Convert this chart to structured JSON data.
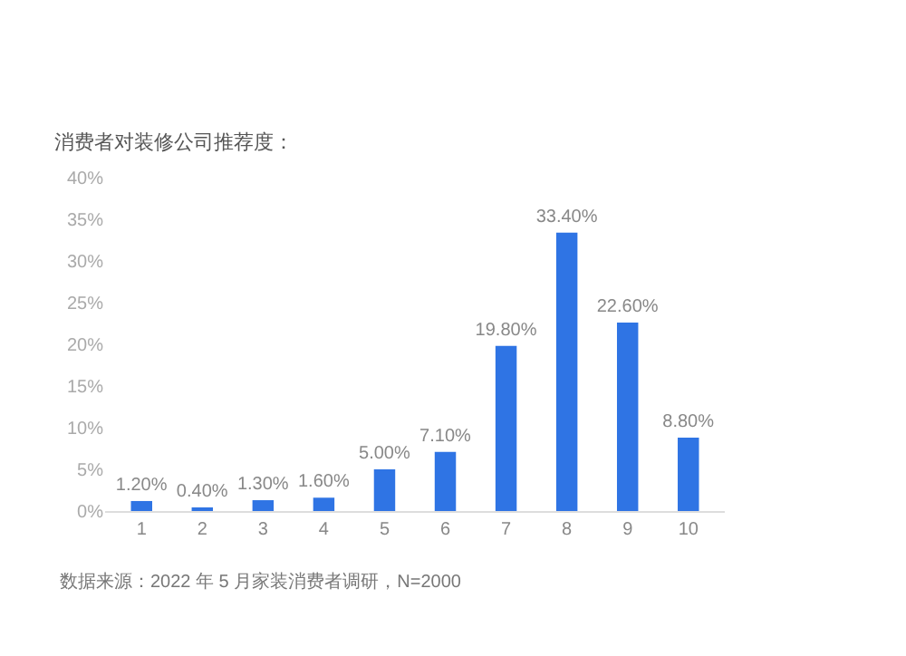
{
  "chart_data": {
    "type": "bar",
    "title": "消费者对装修公司推荐度：",
    "categories": [
      "1",
      "2",
      "3",
      "4",
      "5",
      "6",
      "7",
      "8",
      "9",
      "10"
    ],
    "values": [
      1.2,
      0.4,
      1.3,
      1.6,
      5.0,
      7.1,
      19.8,
      33.4,
      22.6,
      8.8
    ],
    "value_labels": [
      "1.20%",
      "0.40%",
      "1.30%",
      "1.60%",
      "5.00%",
      "7.10%",
      "19.80%",
      "33.40%",
      "22.60%",
      "8.80%"
    ],
    "color": "#2f74e4",
    "ylim": [
      0,
      40
    ],
    "yticks": [
      {
        "value": 0,
        "label": "0%"
      },
      {
        "value": 5,
        "label": "5%"
      },
      {
        "value": 10,
        "label": "10%"
      },
      {
        "value": 15,
        "label": "15%"
      },
      {
        "value": 20,
        "label": "20%"
      },
      {
        "value": 25,
        "label": "25%"
      },
      {
        "value": 30,
        "label": "30%"
      },
      {
        "value": 35,
        "label": "35%"
      },
      {
        "value": 40,
        "label": "40%"
      }
    ],
    "grid": false,
    "annotations": [
      "数据来源：2022 年 5 月家装消费者调研，N=2000"
    ]
  }
}
